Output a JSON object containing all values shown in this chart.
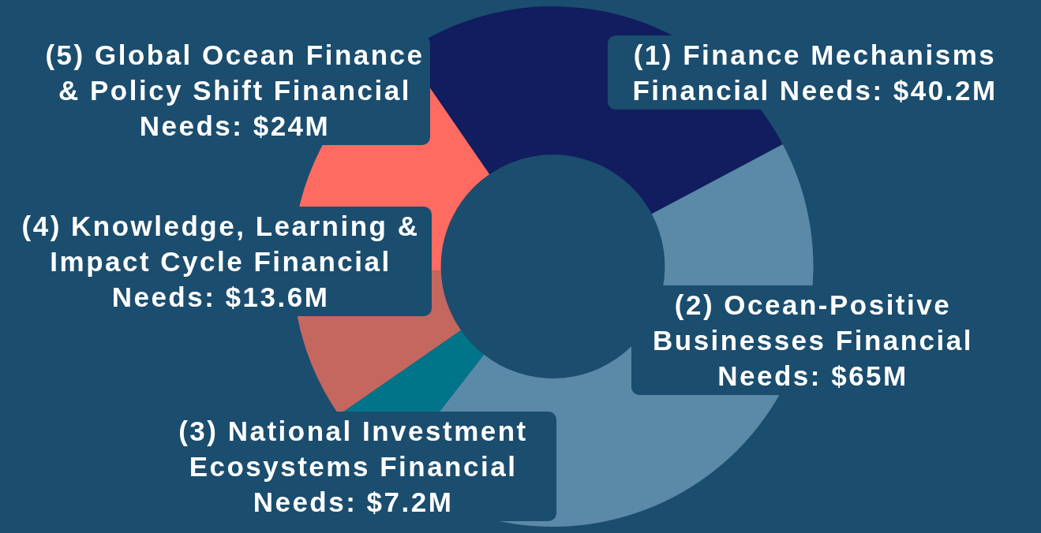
{
  "chart_data": {
    "type": "donut",
    "categories": [
      "(1) Finance Mechanisms",
      "(2) Ocean-Positive Businesses",
      "(3) National Investment Ecosystems",
      "(4) Knowledge, Learning & Impact Cycle",
      "(5) Global Ocean Finance & Policy Shift"
    ],
    "values": [
      40.2,
      65,
      7.2,
      13.6,
      24
    ],
    "value_labels": [
      "Financial Needs: $40.2M",
      "Financial Needs: $65M",
      "Financial Needs: $7.2M",
      "Financial Needs: $13.6M",
      "Financial Needs: $24M"
    ],
    "colors": [
      "#111d5e",
      "#5b89a8",
      "#00758a",
      "#c4675f",
      "#ff6b61"
    ]
  }
}
